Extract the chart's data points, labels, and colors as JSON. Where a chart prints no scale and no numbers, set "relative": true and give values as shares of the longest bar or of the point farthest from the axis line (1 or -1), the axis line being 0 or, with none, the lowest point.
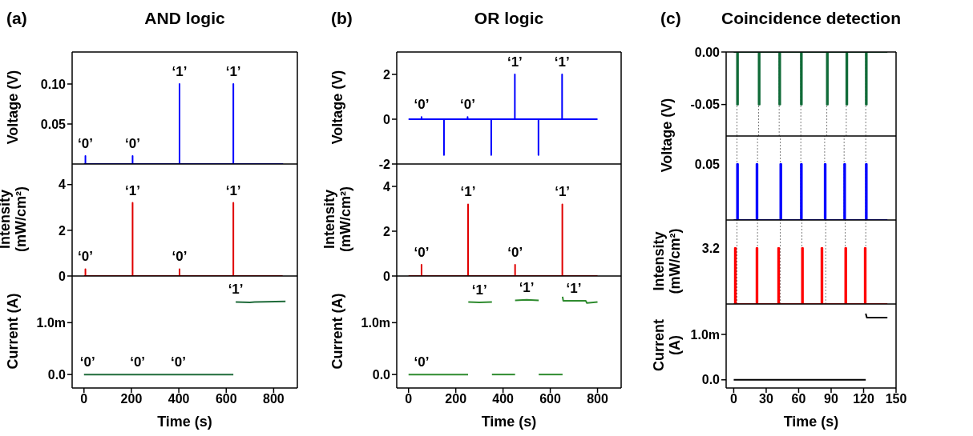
{
  "chart_data": [
    {
      "type": "line",
      "title": "AND logic",
      "ylabel": "Voltage (V)",
      "annotations": [
        "(a)",
        {
          "text": "‘0’",
          "x": 6,
          "y": 0.01
        },
        {
          "text": "‘0’",
          "x": 205,
          "y": 0.01
        },
        {
          "text": "‘1’",
          "x": 403,
          "y": 0.1
        },
        {
          "text": "‘1’",
          "x": 630,
          "y": 0.1
        }
      ],
      "xlim": [
        -50,
        900
      ],
      "ylim": [
        0,
        0.14
      ],
      "yticks": [
        0.05,
        {
          "value": 0.1,
          "label": "0.10"
        }
      ],
      "tick_labels": "y",
      "series": [
        {
          "color": "#0000ff",
          "x": [
            0,
            6,
            6,
            6,
            205,
            205,
            205,
            403,
            403,
            403,
            630,
            630,
            630,
            840
          ],
          "values": [
            0,
            0,
            0.01,
            0,
            0,
            0.01,
            0,
            0,
            0.1,
            0,
            0,
            0.1,
            0,
            0
          ]
        }
      ]
    },
    {
      "type": "line",
      "ylabel": "Intensity (mW/cm²)",
      "annotations": [
        {
          "text": "‘0’",
          "x": 6,
          "y": 0.3
        },
        {
          "text": "‘1’",
          "x": 205,
          "y": 3.2
        },
        {
          "text": "‘0’",
          "x": 403,
          "y": 0.3
        },
        {
          "text": "‘1’",
          "x": 630,
          "y": 3.2
        }
      ],
      "xlim": [
        -50,
        900
      ],
      "ylim": [
        0,
        4.9
      ],
      "yticks": [
        0,
        2,
        4
      ],
      "tick_labels": "y",
      "series": [
        {
          "color": "#e00000",
          "x": [
            0,
            6,
            6,
            6,
            205,
            205,
            205,
            403,
            403,
            403,
            630,
            630,
            630,
            838
          ],
          "values": [
            0,
            0,
            0.3,
            0,
            0,
            3.2,
            0,
            0,
            0.3,
            0,
            0,
            3.2,
            0,
            0
          ]
        }
      ]
    },
    {
      "type": "line",
      "ylabel": "Current (A)",
      "xlabel": "Time (s)",
      "annotations": [
        {
          "text": "‘1’",
          "x": 640,
          "y": 1.4
        },
        {
          "text": "‘0’",
          "x": 15,
          "y": 0
        },
        {
          "text": "‘0’",
          "x": 226,
          "y": 0
        },
        {
          "text": "‘0’",
          "x": 398,
          "y": 0
        }
      ],
      "xlim": [
        -50,
        900
      ],
      "xticks": [
        0,
        200,
        400,
        600,
        800
      ],
      "ylim": [
        -0.26,
        1.9
      ],
      "yticks": [
        {
          "value": 0,
          "label": "0.0"
        },
        {
          "value": 1,
          "label": "1.0m"
        }
      ],
      "series": [
        {
          "color": "#1f6b3a",
          "x": [
            0,
            630
          ],
          "values": [
            0,
            0
          ]
        },
        {
          "color": "#1f6b3a",
          "x": [
            640,
            700,
            720,
            850
          ],
          "values": [
            1.4,
            1.39,
            1.4,
            1.41
          ]
        }
      ]
    },
    {
      "type": "line",
      "title": "OR logic",
      "ylabel": "Voltage (V)",
      "annotations": [
        "(b)",
        {
          "text": "‘0’",
          "x": 55,
          "y": 0.1
        },
        {
          "text": "‘0’",
          "x": 250,
          "y": 0.1
        },
        {
          "text": "‘1’",
          "x": 450,
          "y": 2
        },
        {
          "text": "‘1’",
          "x": 650,
          "y": 2
        }
      ],
      "xlim": [
        -50,
        900
      ],
      "ylim": [
        -2,
        3
      ],
      "yticks": [
        -2,
        0,
        2
      ],
      "tick_labels": "y",
      "series": [
        {
          "color": "#0000ff",
          "x": [
            0,
            55,
            55,
            55,
            150,
            150,
            150,
            250,
            250,
            250,
            350,
            350,
            350,
            450,
            450,
            450,
            550,
            550,
            550,
            650,
            650,
            650,
            800
          ],
          "values": [
            0,
            0,
            0.1,
            0,
            0,
            -1.6,
            0,
            0,
            0.1,
            0,
            0,
            -1.6,
            0,
            0,
            2,
            0,
            0,
            -1.6,
            0,
            0,
            2,
            0,
            0
          ]
        }
      ]
    },
    {
      "type": "line",
      "ylabel": "Intensity (mW/cm²)",
      "annotations": [
        {
          "text": "‘0’",
          "x": 55,
          "y": 0.5
        },
        {
          "text": "‘1’",
          "x": 252,
          "y": 3.2
        },
        {
          "text": "‘0’",
          "x": 451,
          "y": 0.5
        },
        {
          "text": "‘1’",
          "x": 651,
          "y": 3.2
        }
      ],
      "xlim": [
        -50,
        900
      ],
      "ylim": [
        0,
        5
      ],
      "yticks": [
        0,
        2,
        4
      ],
      "tick_labels": "y",
      "series": [
        {
          "color": "#e00000",
          "x": [
            0,
            55,
            55,
            55,
            252,
            252,
            252,
            451,
            451,
            451,
            651,
            651,
            651,
            800
          ],
          "values": [
            0,
            0,
            0.5,
            0,
            0,
            3.2,
            0,
            0,
            0.5,
            0,
            0,
            3.2,
            0,
            0
          ]
        }
      ]
    },
    {
      "type": "line",
      "ylabel": "Current (A)",
      "xlabel": "Time (s)",
      "annotations": [
        {
          "text": "‘1’",
          "x": 300,
          "y": 1.39
        },
        {
          "text": "‘1’",
          "x": 500,
          "y": 1.44
        },
        {
          "text": "‘1’",
          "x": 700,
          "y": 1.42
        },
        {
          "text": "‘0’",
          "x": 55,
          "y": 0
        }
      ],
      "xlim": [
        -50,
        900
      ],
      "xticks": [
        0,
        200,
        400,
        600,
        800
      ],
      "ylim": [
        -0.26,
        1.9
      ],
      "yticks": [
        {
          "value": 0,
          "label": "0.0"
        },
        {
          "value": 1,
          "label": "1.0m"
        }
      ],
      "series": [
        {
          "color": "#2e8b2e",
          "x": [
            0,
            252
          ],
          "values": [
            0,
            0
          ]
        },
        {
          "color": "#2e8b2e",
          "x": [
            253,
            300,
            353
          ],
          "values": [
            1.4,
            1.39,
            1.4
          ]
        },
        {
          "color": "#2e8b2e",
          "x": [
            353,
            451
          ],
          "values": [
            0,
            0
          ]
        },
        {
          "color": "#2e8b2e",
          "x": [
            451,
            500,
            551
          ],
          "values": [
            1.43,
            1.44,
            1.43
          ]
        },
        {
          "color": "#2e8b2e",
          "x": [
            551,
            652
          ],
          "values": [
            0,
            0
          ]
        },
        {
          "color": "#2e8b2e",
          "x": [
            652,
            655,
            700,
            750,
            755,
            800
          ],
          "values": [
            1.5,
            1.42,
            1.42,
            1.42,
            1.38,
            1.4
          ]
        }
      ]
    },
    {
      "type": "line",
      "title": "Coincidence detection",
      "ylabel": "Voltage (V)",
      "annotations": [
        "(c)"
      ],
      "xlim": [
        -7,
        150
      ],
      "ylim": [
        -0.08,
        0
      ],
      "yticks": [
        -0.05,
        {
          "value": 0,
          "label": "0.00"
        }
      ],
      "tick_labels": "y",
      "ref_lines": [
        {
          "axis": "x",
          "value": 3,
          "color": "#808080",
          "line_style": "dotted"
        },
        {
          "axis": "x",
          "value": 23,
          "color": "#808080",
          "line_style": "dotted"
        },
        {
          "axis": "x",
          "value": 42,
          "color": "#808080",
          "line_style": "dotted"
        },
        {
          "axis": "x",
          "value": 62,
          "color": "#808080",
          "line_style": "dotted"
        },
        {
          "axis": "x",
          "value": 86,
          "color": "#808080",
          "line_style": "dotted"
        },
        {
          "axis": "x",
          "value": 104,
          "color": "#808080",
          "line_style": "dotted"
        },
        {
          "axis": "x",
          "value": 122,
          "color": "#808080",
          "line_style": "dotted"
        }
      ],
      "series": [
        {
          "color": "#106b38",
          "x": [
            0,
            3,
            3,
            4,
            4,
            23,
            23,
            24,
            24,
            42,
            42,
            43,
            43,
            62,
            62,
            63,
            63,
            86,
            86,
            87,
            87,
            104,
            104,
            105,
            105,
            122,
            122,
            123,
            123,
            142
          ],
          "values": [
            0,
            0,
            -0.05,
            -0.05,
            0,
            0,
            -0.05,
            -0.05,
            0,
            0,
            -0.05,
            -0.05,
            0,
            0,
            -0.05,
            -0.05,
            0,
            0,
            -0.05,
            -0.05,
            0,
            0,
            -0.05,
            -0.05,
            0,
            0,
            -0.05,
            -0.05,
            0,
            0
          ]
        }
      ]
    },
    {
      "type": "line",
      "relative": true,
      "annotations": [
        "0.05"
      ],
      "xlim": [
        -7,
        150
      ],
      "tick_labels": "y",
      "ref_lines": [
        {
          "axis": "x",
          "value": 3,
          "color": "#808080",
          "line_style": "dotted"
        },
        {
          "axis": "x",
          "value": 22,
          "color": "#808080",
          "line_style": "dotted"
        },
        {
          "axis": "x",
          "value": 43,
          "color": "#808080",
          "line_style": "dotted"
        },
        {
          "axis": "x",
          "value": 62,
          "color": "#808080",
          "line_style": "dotted"
        },
        {
          "axis": "x",
          "value": 84,
          "color": "#808080",
          "line_style": "dotted"
        },
        {
          "axis": "x",
          "value": 102,
          "color": "#808080",
          "line_style": "dotted"
        },
        {
          "axis": "x",
          "value": 122,
          "color": "#808080",
          "line_style": "dotted"
        }
      ],
      "series": [
        {
          "color": "#0000ff",
          "x": [
            0,
            3,
            3,
            4,
            4,
            21,
            21,
            22,
            22,
            43,
            43,
            44,
            44,
            62,
            62,
            63,
            63,
            84,
            84,
            85,
            85,
            102,
            102,
            103,
            103,
            122,
            122,
            123,
            123,
            142
          ],
          "values": [
            0,
            0,
            1,
            1,
            0,
            0,
            1,
            1,
            0,
            0,
            1,
            1,
            0,
            0,
            1,
            1,
            0,
            0,
            1,
            1,
            0,
            0,
            1,
            1,
            0,
            0,
            1,
            1,
            0,
            0
          ]
        }
      ]
    },
    {
      "type": "line",
      "relative": true,
      "ylabel": "Intensity (mW/cm²)",
      "annotations": [
        "3.2"
      ],
      "xlim": [
        -7,
        150
      ],
      "tick_labels": "y",
      "ref_lines": [
        {
          "axis": "x",
          "value": 3,
          "color": "#808080",
          "line_style": "dotted"
        },
        {
          "axis": "x",
          "value": 22,
          "color": "#808080",
          "line_style": "dotted"
        },
        {
          "axis": "x",
          "value": 43,
          "color": "#808080",
          "line_style": "dotted"
        },
        {
          "axis": "x",
          "value": 63,
          "color": "#808080",
          "line_style": "dotted"
        },
        {
          "axis": "x",
          "value": 85,
          "color": "#808080",
          "line_style": "dotted"
        },
        {
          "axis": "x",
          "value": 103,
          "color": "#808080",
          "line_style": "dotted"
        },
        {
          "axis": "x",
          "value": 122,
          "color": "#808080",
          "line_style": "dotted"
        }
      ],
      "series": [
        {
          "color": "#ff0000",
          "x": [
            0,
            1,
            1,
            2,
            2,
            21,
            21,
            22,
            22,
            41,
            41,
            42,
            42,
            63,
            63,
            64,
            64,
            81,
            81,
            82,
            82,
            103,
            103,
            104,
            104,
            121,
            121,
            122,
            122,
            142
          ],
          "values": [
            0,
            0,
            1,
            1,
            0,
            0,
            1,
            1,
            0,
            0,
            1,
            1,
            0,
            0,
            1,
            1,
            0,
            0,
            1,
            1,
            0,
            0,
            1,
            1,
            0,
            0,
            1,
            1,
            0,
            0
          ]
        }
      ]
    },
    {
      "type": "line",
      "ylabel": "Current (A)",
      "xlabel": "Time (s)",
      "xlim": [
        -7,
        150
      ],
      "xticks": [
        0,
        30,
        60,
        90,
        120,
        150
      ],
      "ylim": [
        -0.18,
        1.67
      ],
      "yticks": [
        {
          "value": 0,
          "label": "0.0"
        },
        {
          "value": 1,
          "label": "1.0m"
        }
      ],
      "series": [
        {
          "color": "#000000",
          "x": [
            0,
            122
          ],
          "values": [
            0,
            0
          ]
        },
        {
          "color": "#000000",
          "x": [
            122,
            123,
            125,
            142
          ],
          "values": [
            1.46,
            1.37,
            1.37,
            1.37
          ]
        }
      ]
    }
  ]
}
